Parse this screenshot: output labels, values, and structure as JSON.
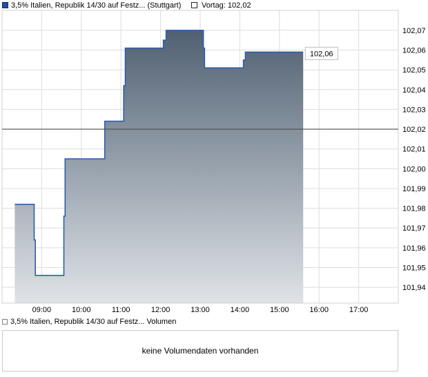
{
  "header": {
    "series_label": "3,5% Italien, Republik 14/30 auf Festz... (Stuttgart)",
    "vortag_label": "Vortag: 102,02"
  },
  "volume": {
    "legend_label": "3,5% Italien, Republik 14/30 auf Festz... Volumen",
    "message": "keine Volumendaten vorhanden"
  },
  "colors": {
    "line": "#2c5da9",
    "legend_square_fill": "#2050a0",
    "legend_square_border": "#0f2f66",
    "vortag_square_border": "#222222",
    "volume_square_border": "#808080",
    "fill_top": "#46576a",
    "fill_bottom": "#dfe3e7",
    "grid": "#dcdcdc",
    "plot_border": "#d0d0d0",
    "previous_close_line": "#4d4d4d",
    "axis_text": "#000000",
    "flag_border": "#bdbdbd",
    "flag_background": "#ffffff"
  },
  "chart_data": {
    "type": "area",
    "subtype": "step",
    "title": "3,5% Italien, Republik 14/30 auf Festz... (Stuttgart)",
    "exchange": "Stuttgart",
    "previous_close": 102.02,
    "last_price": 102.06,
    "last_price_label": "102,06",
    "grid": true,
    "legend_position": "top",
    "x_domain_hours": [
      8,
      18
    ],
    "y_domain": [
      101.932,
      102.0801
    ],
    "x_ticks": [
      {
        "h": 9,
        "label": "09:00"
      },
      {
        "h": 10,
        "label": "10:00"
      },
      {
        "h": 11,
        "label": "11:00"
      },
      {
        "h": 12,
        "label": "12:00"
      },
      {
        "h": 13,
        "label": "13:00"
      },
      {
        "h": 14,
        "label": "14:00"
      },
      {
        "h": 15,
        "label": "15:00"
      },
      {
        "h": 16,
        "label": "16:00"
      },
      {
        "h": 17,
        "label": "17:00"
      }
    ],
    "y_ticks": [
      {
        "v": 102.07,
        "label": "102,07"
      },
      {
        "v": 102.06,
        "label": "102,06"
      },
      {
        "v": 102.05,
        "label": "102,05"
      },
      {
        "v": 102.04,
        "label": "102,04"
      },
      {
        "v": 102.03,
        "label": "102,03"
      },
      {
        "v": 102.02,
        "label": "102,02"
      },
      {
        "v": 102.01,
        "label": "102,01"
      },
      {
        "v": 102.0,
        "label": "102,00"
      },
      {
        "v": 101.99,
        "label": "101,99"
      },
      {
        "v": 101.98,
        "label": "101,98"
      },
      {
        "v": 101.97,
        "label": "101,97"
      },
      {
        "v": 101.96,
        "label": "101,96"
      },
      {
        "v": 101.95,
        "label": "101,95"
      },
      {
        "v": 101.94,
        "label": "101,94"
      }
    ],
    "steps": [
      [
        8.32,
        101.982
      ],
      [
        8.81,
        101.964
      ],
      [
        8.84,
        101.946
      ],
      [
        9.56,
        101.976
      ],
      [
        9.59,
        102.005
      ],
      [
        10.59,
        102.024
      ],
      [
        11.07,
        102.042
      ],
      [
        11.11,
        102.061
      ],
      [
        12.07,
        102.065
      ],
      [
        12.14,
        102.07
      ],
      [
        13.08,
        102.061
      ],
      [
        13.11,
        102.051
      ],
      [
        14.09,
        102.055
      ],
      [
        14.14,
        102.059
      ]
    ],
    "end_hour": 15.6
  }
}
